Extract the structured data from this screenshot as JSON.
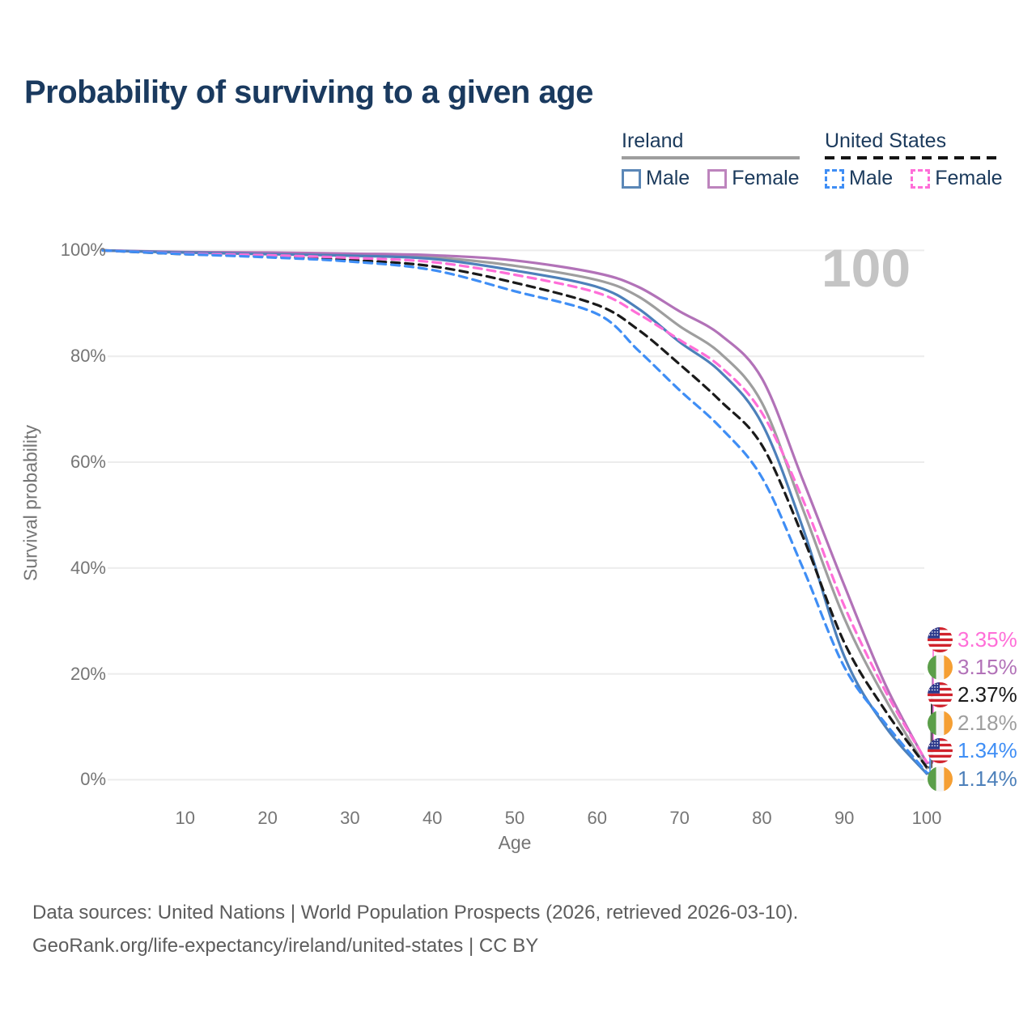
{
  "title": "Probability of surviving to a given age",
  "watermark": "100",
  "legend": {
    "groups": [
      {
        "label": "Ireland",
        "line_style": "solid",
        "line_color": "#9e9e9e",
        "items": [
          {
            "label": "Male",
            "color": "#5b87b7"
          },
          {
            "label": "Female",
            "color": "#bd84bd"
          }
        ]
      },
      {
        "label": "United States",
        "line_style": "dashed",
        "line_color": "#141414",
        "items": [
          {
            "label": "Male",
            "color": "#3f8ef5"
          },
          {
            "label": "Female",
            "color": "#ff6ed8"
          }
        ]
      }
    ]
  },
  "chart_data": {
    "type": "line",
    "title": "Probability of surviving to a given age",
    "xlabel": "Age",
    "ylabel": "Survival probability",
    "xlim": [
      0,
      100
    ],
    "ylim": [
      0,
      100
    ],
    "x_ticks": [
      10,
      20,
      30,
      40,
      50,
      60,
      70,
      80,
      90,
      100
    ],
    "y_ticks": [
      {
        "value": 0,
        "label": "0%"
      },
      {
        "value": 20,
        "label": "20%"
      },
      {
        "value": 40,
        "label": "40%"
      },
      {
        "value": 60,
        "label": "60%"
      },
      {
        "value": 80,
        "label": "80%"
      },
      {
        "value": 100,
        "label": "100%"
      }
    ],
    "grid": "horizontal",
    "legend_position": "top-right",
    "ages": [
      0,
      10,
      20,
      30,
      40,
      50,
      60,
      65,
      70,
      75,
      80,
      85,
      90,
      95,
      100
    ],
    "series": [
      {
        "id": "ie_all",
        "name": "Ireland",
        "country": "IE",
        "sex": "all",
        "line_style": "solid",
        "color": "#9e9e9e",
        "icon": "ireland-flag-icon",
        "end_label": "2.18%",
        "values": [
          100,
          99.6,
          99.4,
          99.2,
          98.7,
          97.1,
          94.4,
          91.3,
          85.7,
          80.5,
          71.2,
          51.0,
          30.5,
          15.2,
          2.18
        ]
      },
      {
        "id": "ie_female",
        "name": "Ireland Female",
        "country": "IE",
        "sex": "female",
        "line_style": "solid",
        "color": "#b272b8",
        "icon": "ireland-flag-icon",
        "end_label": "3.15%",
        "values": [
          100,
          99.7,
          99.6,
          99.4,
          99.1,
          98.1,
          95.7,
          93.1,
          88.5,
          84.0,
          75.8,
          56.5,
          36.7,
          17.9,
          3.15
        ]
      },
      {
        "id": "ie_male",
        "name": "Ireland Male",
        "country": "IE",
        "sex": "male",
        "line_style": "solid",
        "color": "#4d80ba",
        "icon": "ireland-flag-icon",
        "end_label": "1.14%",
        "values": [
          100,
          99.6,
          99.3,
          99.0,
          98.4,
          96.2,
          93.1,
          89.0,
          82.7,
          77.0,
          67.3,
          47.4,
          23.3,
          10.0,
          1.14
        ]
      },
      {
        "id": "us_all",
        "name": "United States",
        "country": "US",
        "sex": "all",
        "line_style": "dashed",
        "color": "#1a1a1a",
        "icon": "us-flag-icon",
        "end_label": "2.37%",
        "values": [
          100,
          99.3,
          98.9,
          98.2,
          97.0,
          93.9,
          89.7,
          85.0,
          78.5,
          71.5,
          63.2,
          45.8,
          25.9,
          13.0,
          2.37
        ]
      },
      {
        "id": "us_female",
        "name": "United States Female",
        "country": "US",
        "sex": "female",
        "line_style": "dashed",
        "color": "#ff6ed8",
        "icon": "us-flag-icon",
        "end_label": "3.35%",
        "values": [
          100,
          99.4,
          99.1,
          98.6,
          97.8,
          95.4,
          92.0,
          88.0,
          83.1,
          78.0,
          69.3,
          52.8,
          32.8,
          16.7,
          3.35
        ]
      },
      {
        "id": "us_male",
        "name": "United States Male",
        "country": "US",
        "sex": "male",
        "line_style": "dashed",
        "color": "#3f8ef5",
        "icon": "us-flag-icon",
        "end_label": "1.34%",
        "values": [
          100,
          99.3,
          98.7,
          97.9,
          96.3,
          92.3,
          88.0,
          81.1,
          73.6,
          66.5,
          57.1,
          39.9,
          21.3,
          10.6,
          1.34
        ]
      }
    ]
  },
  "footer": {
    "line1": "Data sources: United Nations | World Population Prospects (2026, retrieved 2026-03-10).",
    "line2": "GeoRank.org/life-expectancy/ireland/united-states | CC BY"
  }
}
